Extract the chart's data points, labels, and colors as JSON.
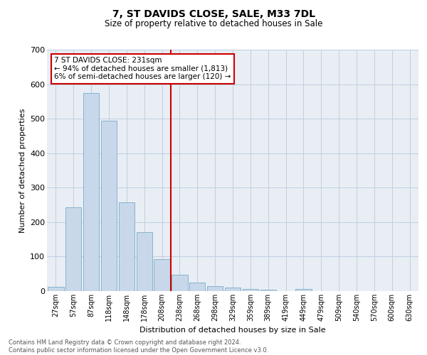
{
  "title1": "7, ST DAVIDS CLOSE, SALE, M33 7DL",
  "title2": "Size of property relative to detached houses in Sale",
  "xlabel": "Distribution of detached houses by size in Sale",
  "ylabel": "Number of detached properties",
  "bar_labels": [
    "27sqm",
    "57sqm",
    "87sqm",
    "118sqm",
    "148sqm",
    "178sqm",
    "208sqm",
    "238sqm",
    "268sqm",
    "298sqm",
    "329sqm",
    "359sqm",
    "389sqm",
    "419sqm",
    "449sqm",
    "479sqm",
    "509sqm",
    "540sqm",
    "570sqm",
    "600sqm",
    "630sqm"
  ],
  "bar_values": [
    13,
    243,
    575,
    495,
    258,
    170,
    92,
    48,
    24,
    14,
    11,
    7,
    5,
    0,
    6,
    0,
    0,
    0,
    0,
    0,
    0
  ],
  "bar_color": "#c8d8ea",
  "bar_edge_color": "#7aaac8",
  "property_line_idx": 7,
  "annotation_line1": "7 ST DAVIDS CLOSE: 231sqm",
  "annotation_line2": "← 94% of detached houses are smaller (1,813)",
  "annotation_line3": "6% of semi-detached houses are larger (120) →",
  "annotation_box_color": "#ffffff",
  "annotation_box_edge": "#cc0000",
  "vline_color": "#cc0000",
  "grid_color": "#c0cfe0",
  "background_color": "#e8eef4",
  "footer1": "Contains HM Land Registry data © Crown copyright and database right 2024.",
  "footer2": "Contains public sector information licensed under the Open Government Licence v3.0.",
  "ylim": [
    0,
    700
  ],
  "yticks": [
    0,
    100,
    200,
    300,
    400,
    500,
    600,
    700
  ]
}
